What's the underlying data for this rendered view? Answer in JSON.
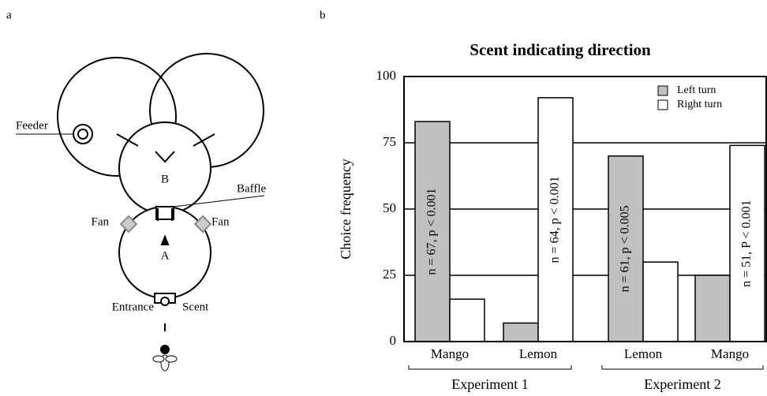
{
  "panels": {
    "a": "a",
    "b": "b"
  },
  "diagram": {
    "feeder": "Feeder",
    "chamber_b": "B",
    "baffle": "Baffle",
    "fan_left": "Fan",
    "fan_right": "Fan",
    "chamber_a": "A",
    "entrance": "Entrance",
    "scent": "Scent"
  },
  "chart_data": {
    "type": "bar",
    "title": "Scent indicating direction",
    "y_label": "Choice frequency",
    "categories": [
      "Mango",
      "Lemon",
      "Lemon",
      "Mango"
    ],
    "groups": [
      {
        "name": "Experiment 1",
        "categories": [
          0,
          1
        ]
      },
      {
        "name": "Experiment 2",
        "categories": [
          2,
          3
        ]
      }
    ],
    "series": [
      {
        "name": "Left turn",
        "color": "#c0c0c0",
        "values": [
          83,
          7,
          70,
          25
        ]
      },
      {
        "name": "Right turn",
        "color": "#ffffff",
        "values": [
          16,
          92,
          30,
          74
        ]
      }
    ],
    "annotations": [
      "n = 67, p < 0.001",
      "n = 64, p < 0.001",
      "n = 61, p < 0.005",
      "n = 51, P < 0.001"
    ],
    "ylim": [
      0,
      100
    ],
    "yticks": [
      0,
      25,
      50,
      75,
      100
    ],
    "grid": true,
    "legend": "top-right"
  }
}
